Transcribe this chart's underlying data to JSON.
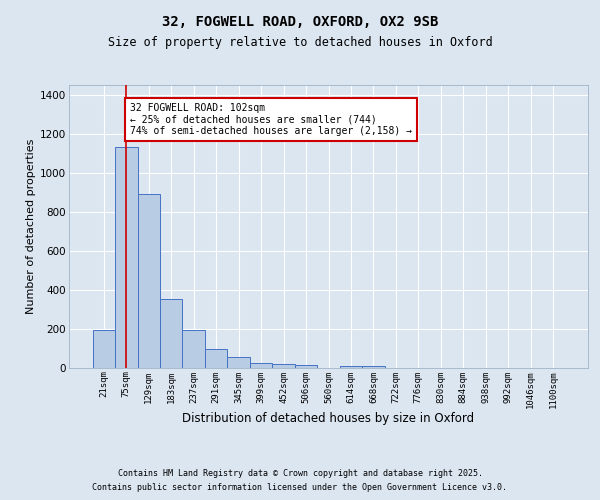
{
  "title1": "32, FOGWELL ROAD, OXFORD, OX2 9SB",
  "title2": "Size of property relative to detached houses in Oxford",
  "xlabel": "Distribution of detached houses by size in Oxford",
  "ylabel": "Number of detached properties",
  "bar_labels": [
    "21sqm",
    "75sqm",
    "129sqm",
    "183sqm",
    "237sqm",
    "291sqm",
    "345sqm",
    "399sqm",
    "452sqm",
    "506sqm",
    "560sqm",
    "614sqm",
    "668sqm",
    "722sqm",
    "776sqm",
    "830sqm",
    "884sqm",
    "938sqm",
    "992sqm",
    "1046sqm",
    "1100sqm"
  ],
  "bar_heights": [
    190,
    1130,
    890,
    350,
    195,
    95,
    55,
    25,
    20,
    12,
    0,
    8,
    8,
    0,
    0,
    0,
    0,
    0,
    0,
    0,
    0
  ],
  "bar_color": "#b8cce4",
  "bar_edge_color": "#4472c4",
  "bg_color": "#dce6f1",
  "plot_bg_color": "#dce6f1",
  "grid_color": "#ffffff",
  "red_line_x": 1.0,
  "annotation_text": "32 FOGWELL ROAD: 102sqm\n← 25% of detached houses are smaller (744)\n74% of semi-detached houses are larger (2,158) →",
  "annotation_box_color": "#ffffff",
  "annotation_box_edge": "#cc0000",
  "red_line_color": "#cc0000",
  "ylim": [
    0,
    1450
  ],
  "yticks": [
    0,
    200,
    400,
    600,
    800,
    1000,
    1200,
    1400
  ],
  "footer1": "Contains HM Land Registry data © Crown copyright and database right 2025.",
  "footer2": "Contains public sector information licensed under the Open Government Licence v3.0."
}
